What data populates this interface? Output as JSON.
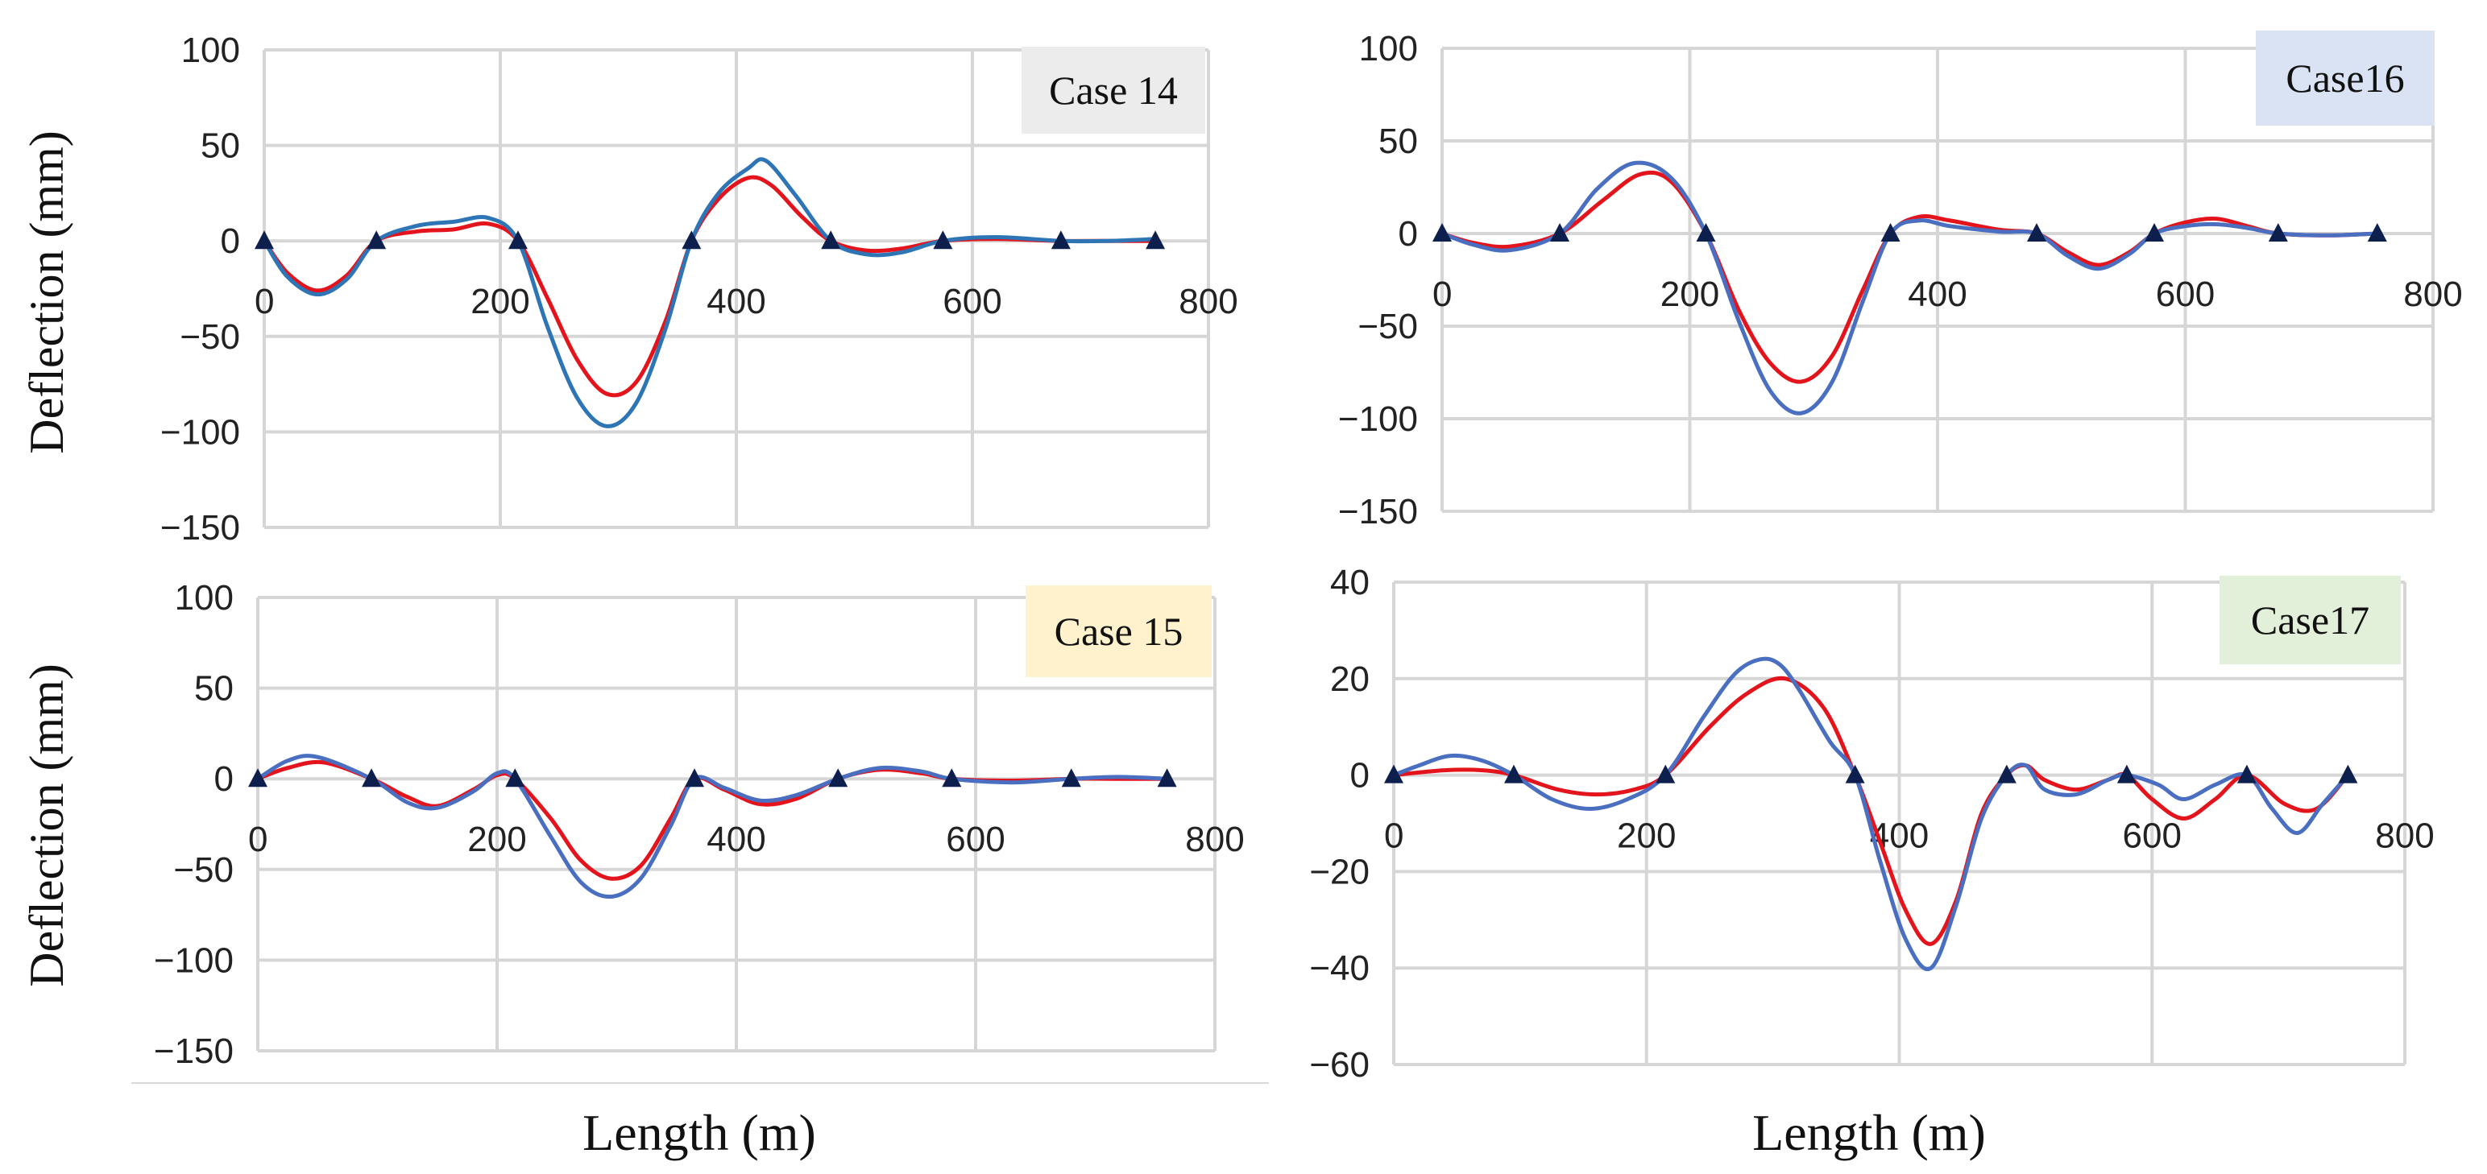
{
  "figure": {
    "ylabel": "Deflection (mm)",
    "xlabel": "Length (m)"
  },
  "chart_data": [
    {
      "type": "line",
      "title": "Case 14",
      "xlabel": "Length (m)",
      "ylabel": "Deflection (mm)",
      "xlim": [
        0,
        800
      ],
      "ylim": [
        -150,
        100
      ],
      "xticks": [
        0,
        200,
        400,
        600,
        800
      ],
      "yticks": [
        100,
        50,
        0,
        -50,
        -100,
        -150
      ],
      "xtick_labels": [
        "0",
        "200",
        "400",
        "600",
        "800"
      ],
      "ytick_labels": [
        "100",
        "50",
        "0",
        "−50",
        "−100",
        "−150"
      ],
      "grid": true,
      "supports": [
        0,
        95,
        215,
        362,
        480,
        575,
        675,
        755
      ],
      "series": [
        {
          "name": "red",
          "color": "#e3141c",
          "x": [
            0,
            20,
            45,
            70,
            95,
            130,
            160,
            190,
            215,
            240,
            265,
            290,
            315,
            340,
            362,
            385,
            410,
            430,
            455,
            480,
            510,
            540,
            575,
            620,
            675,
            715,
            755
          ],
          "y": [
            0,
            -17,
            -26,
            -18,
            0,
            5,
            6,
            9,
            0,
            -30,
            -62,
            -80,
            -74,
            -42,
            0,
            22,
            33,
            29,
            13,
            0,
            -5,
            -4,
            0,
            1,
            0,
            0,
            0
          ]
        },
        {
          "name": "blue",
          "color": "#2e75b6",
          "x": [
            0,
            20,
            45,
            70,
            95,
            130,
            160,
            190,
            215,
            240,
            265,
            290,
            315,
            340,
            362,
            385,
            410,
            425,
            450,
            480,
            510,
            540,
            575,
            620,
            675,
            715,
            755
          ],
          "y": [
            0,
            -19,
            -28,
            -20,
            0,
            8,
            10,
            12,
            0,
            -45,
            -82,
            -97,
            -85,
            -46,
            0,
            25,
            38,
            42,
            24,
            0,
            -7,
            -6,
            0,
            2,
            0,
            0,
            1
          ]
        }
      ]
    },
    {
      "type": "line",
      "title": "Case16",
      "xlabel": "Length (m)",
      "ylabel": "Deflection (mm)",
      "xlim": [
        0,
        800
      ],
      "ylim": [
        -150,
        100
      ],
      "xticks": [
        0,
        200,
        400,
        600,
        800
      ],
      "yticks": [
        100,
        50,
        0,
        -50,
        -100,
        -150
      ],
      "xtick_labels": [
        "0",
        "200",
        "400",
        "600",
        "800"
      ],
      "ytick_labels": [
        "100",
        "50",
        "0",
        "−50",
        "−100",
        "−150"
      ],
      "grid": true,
      "supports": [
        0,
        95,
        213,
        362,
        480,
        575,
        675,
        755
      ],
      "series": [
        {
          "name": "red",
          "color": "#e3141c",
          "x": [
            0,
            25,
            55,
            95,
            130,
            160,
            185,
            213,
            240,
            265,
            290,
            315,
            340,
            362,
            385,
            410,
            450,
            480,
            505,
            530,
            555,
            575,
            600,
            625,
            650,
            675,
            715,
            755
          ],
          "y": [
            0,
            -5,
            -7,
            0,
            18,
            32,
            28,
            0,
            -42,
            -70,
            -80,
            -66,
            -30,
            0,
            9,
            7,
            2,
            0,
            -10,
            -17,
            -10,
            0,
            6,
            8,
            4,
            0,
            -1,
            0
          ]
        },
        {
          "name": "blue",
          "color": "#4a6fc0",
          "x": [
            0,
            25,
            55,
            95,
            125,
            155,
            185,
            213,
            240,
            265,
            290,
            315,
            340,
            362,
            385,
            410,
            450,
            480,
            505,
            530,
            555,
            575,
            600,
            625,
            650,
            675,
            715,
            755
          ],
          "y": [
            0,
            -6,
            -9,
            0,
            24,
            38,
            30,
            0,
            -48,
            -85,
            -97,
            -80,
            -36,
            0,
            7,
            4,
            1,
            0,
            -12,
            -19,
            -11,
            0,
            4,
            5,
            3,
            0,
            -1,
            0
          ]
        }
      ]
    },
    {
      "type": "line",
      "title": "Case 15",
      "xlabel": "Length (m)",
      "ylabel": "Deflection (mm)",
      "xlim": [
        0,
        800
      ],
      "ylim": [
        -150,
        100
      ],
      "xticks": [
        0,
        200,
        400,
        600,
        800
      ],
      "yticks": [
        100,
        50,
        0,
        -50,
        -100,
        -150
      ],
      "xtick_labels": [
        "0",
        "200",
        "400",
        "600",
        "800"
      ],
      "ytick_labels": [
        "100",
        "50",
        "0",
        "−50",
        "−100",
        "−150"
      ],
      "grid": true,
      "supports": [
        0,
        95,
        215,
        365,
        485,
        580,
        680,
        760
      ],
      "series": [
        {
          "name": "red",
          "color": "#e3141c",
          "x": [
            0,
            25,
            55,
            95,
            125,
            150,
            180,
            200,
            215,
            245,
            270,
            295,
            320,
            345,
            365,
            390,
            420,
            450,
            485,
            520,
            555,
            580,
            630,
            680,
            720,
            760
          ],
          "y": [
            0,
            6,
            9,
            0,
            -10,
            -15,
            -6,
            2,
            0,
            -22,
            -45,
            -55,
            -48,
            -22,
            0,
            -6,
            -14,
            -11,
            0,
            5,
            3,
            0,
            -1,
            0,
            0,
            0
          ]
        },
        {
          "name": "blue",
          "color": "#4a6fc0",
          "x": [
            0,
            25,
            50,
            95,
            125,
            150,
            180,
            200,
            215,
            245,
            270,
            295,
            320,
            345,
            365,
            390,
            420,
            450,
            485,
            520,
            555,
            580,
            630,
            680,
            720,
            760
          ],
          "y": [
            0,
            10,
            12,
            0,
            -13,
            -16,
            -7,
            3,
            0,
            -32,
            -57,
            -65,
            -55,
            -26,
            0,
            -5,
            -12,
            -9,
            0,
            6,
            4,
            0,
            -2,
            0,
            1,
            0
          ]
        }
      ]
    },
    {
      "type": "line",
      "title": "Case17",
      "xlabel": "Length (m)",
      "ylabel": "Deflection (mm)",
      "xlim": [
        0,
        800
      ],
      "ylim": [
        -60,
        40
      ],
      "xticks": [
        0,
        200,
        400,
        600,
        800
      ],
      "yticks": [
        40,
        20,
        0,
        -20,
        -40,
        -60
      ],
      "xtick_labels": [
        "0",
        "200",
        "400",
        "600",
        "800"
      ],
      "ytick_labels": [
        "40",
        "20",
        "0",
        "−20",
        "−40",
        "−60"
      ],
      "grid": true,
      "supports": [
        0,
        95,
        215,
        365,
        485,
        580,
        675,
        755
      ],
      "series": [
        {
          "name": "red",
          "color": "#e3141c",
          "x": [
            0,
            40,
            70,
            95,
            130,
            160,
            190,
            215,
            250,
            280,
            310,
            340,
            365,
            385,
            405,
            425,
            445,
            465,
            485,
            500,
            515,
            540,
            565,
            580,
            600,
            625,
            650,
            675,
            705,
            730,
            755
          ],
          "y": [
            0,
            1,
            1,
            0,
            -3,
            -4,
            -3,
            0,
            10,
            17,
            20,
            14,
            0,
            -14,
            -28,
            -35,
            -26,
            -8,
            0,
            2,
            -1,
            -3,
            -1,
            0,
            -5,
            -9,
            -5,
            0,
            -6,
            -7,
            0
          ]
        },
        {
          "name": "blue",
          "color": "#4a6fc0",
          "x": [
            0,
            20,
            45,
            70,
            95,
            125,
            155,
            185,
            215,
            245,
            270,
            290,
            305,
            320,
            345,
            365,
            385,
            405,
            425,
            445,
            465,
            485,
            500,
            515,
            540,
            565,
            580,
            605,
            625,
            650,
            675,
            695,
            715,
            735,
            755
          ],
          "y": [
            0,
            2,
            4,
            3,
            0,
            -5,
            -7,
            -5,
            0,
            12,
            21,
            24,
            23,
            18,
            7,
            0,
            -18,
            -34,
            -40,
            -27,
            -9,
            0,
            2,
            -3,
            -4,
            -1,
            0,
            -2,
            -5,
            -2,
            0,
            -7,
            -12,
            -6,
            0
          ]
        }
      ]
    }
  ]
}
